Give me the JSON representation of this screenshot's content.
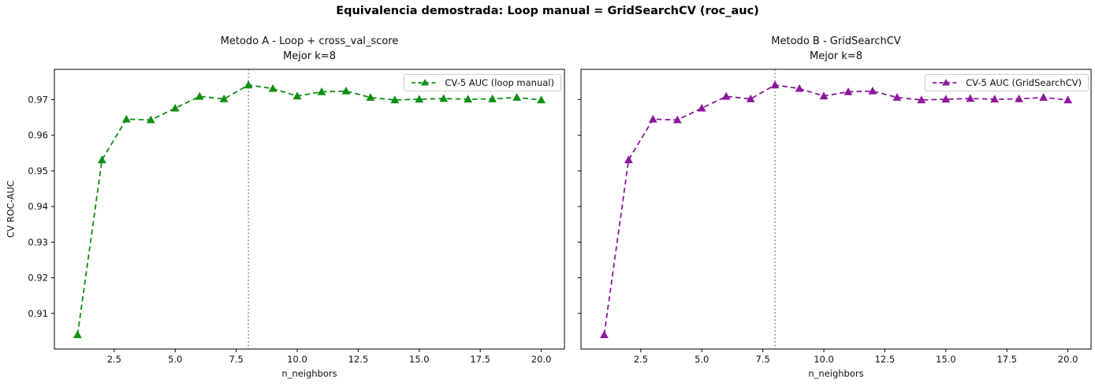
{
  "figure": {
    "title": "Equivalencia demostrada: Loop manual = GridSearchCV  (roc_auc)",
    "background": "#ffffff"
  },
  "chart_data": [
    {
      "type": "line",
      "title_line1": "Metodo A - Loop + cross_val_score",
      "title_line2": "Mejor k=8",
      "xlabel": "n_neighbors",
      "ylabel": "CV ROC-AUC",
      "legend_label": "CV-5 AUC (loop manual)",
      "legend_position": "upper right",
      "line_color": "#0c8f12",
      "line_style": "dashed",
      "marker": "triangle-up",
      "best_k": 8,
      "vline": {
        "x": 8,
        "style": "dotted",
        "color": "#7e7e7e"
      },
      "x": [
        1,
        2,
        3,
        4,
        5,
        6,
        7,
        8,
        9,
        10,
        11,
        12,
        13,
        14,
        15,
        16,
        17,
        18,
        19,
        20
      ],
      "values": [
        0.904,
        0.9531,
        0.9645,
        0.9643,
        0.9676,
        0.9709,
        0.9702,
        0.9741,
        0.9731,
        0.971,
        0.9722,
        0.9724,
        0.9706,
        0.9699,
        0.9701,
        0.9703,
        0.9701,
        0.9702,
        0.9706,
        0.9699
      ],
      "xlim": [
        0.05,
        20.95
      ],
      "ylim": [
        0.9,
        0.9785
      ],
      "xticks": [
        2.5,
        5.0,
        7.5,
        10.0,
        12.5,
        15.0,
        17.5,
        20.0
      ],
      "yticks": [
        0.91,
        0.92,
        0.93,
        0.94,
        0.95,
        0.96,
        0.97
      ],
      "show_ytick_labels": true,
      "grid": false
    },
    {
      "type": "line",
      "title_line1": "Metodo B - GridSearchCV",
      "title_line2": "Mejor k=8",
      "xlabel": "n_neighbors",
      "ylabel": "",
      "legend_label": "CV-5 AUC (GridSearchCV)",
      "legend_position": "upper right",
      "line_color": "#8e189e",
      "line_style": "dashed",
      "marker": "triangle-up",
      "best_k": 8,
      "vline": {
        "x": 8,
        "style": "dotted",
        "color": "#7e7e7e"
      },
      "x": [
        1,
        2,
        3,
        4,
        5,
        6,
        7,
        8,
        9,
        10,
        11,
        12,
        13,
        14,
        15,
        16,
        17,
        18,
        19,
        20
      ],
      "values": [
        0.904,
        0.9531,
        0.9645,
        0.9643,
        0.9676,
        0.9709,
        0.9702,
        0.9741,
        0.9731,
        0.971,
        0.9722,
        0.9724,
        0.9706,
        0.9699,
        0.9701,
        0.9703,
        0.9701,
        0.9702,
        0.9706,
        0.9699
      ],
      "xlim": [
        0.05,
        20.95
      ],
      "ylim": [
        0.9,
        0.9785
      ],
      "xticks": [
        2.5,
        5.0,
        7.5,
        10.0,
        12.5,
        15.0,
        17.5,
        20.0
      ],
      "yticks": [
        0.91,
        0.92,
        0.93,
        0.94,
        0.95,
        0.96,
        0.97
      ],
      "show_ytick_labels": false,
      "grid": false
    }
  ]
}
